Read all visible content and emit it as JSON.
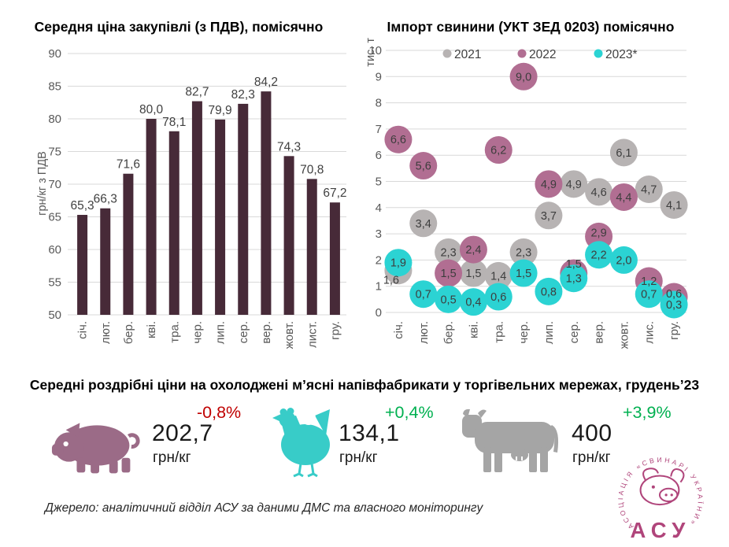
{
  "chart_data": [
    {
      "type": "bar",
      "title": "Середня ціна закупівлі (з ПДВ), помісячно",
      "ylabel": "грн/кг з ПДВ",
      "ylim": [
        50,
        90
      ],
      "ytick_step": 5,
      "grid": true,
      "categories": [
        "січ.",
        "лют.",
        "бер.",
        "кві.",
        "тра.",
        "чер.",
        "лип.",
        "сер.",
        "вер.",
        "жовт.",
        "лист.",
        "гру."
      ],
      "values": [
        65.3,
        66.3,
        71.6,
        80.0,
        78.1,
        82.7,
        79.9,
        82.3,
        84.2,
        74.3,
        70.8,
        67.2
      ],
      "value_labels": [
        "65,3",
        "66,3",
        "71,6",
        "80,0",
        "78,1",
        "82,7",
        "79,9",
        "82,3",
        "84,2",
        "74,3",
        "70,8",
        "67,2"
      ],
      "bar_color": "#472a38"
    },
    {
      "type": "scatter",
      "title": "Імпорт свинини (УКТ ЗЕД 0203) помісячно",
      "ylabel": "тис. т",
      "ylim": [
        0,
        10
      ],
      "ytick_step": 1,
      "grid": true,
      "legend_position": "top",
      "categories": [
        "січ.",
        "лют.",
        "бер.",
        "кві.",
        "тра.",
        "чер.",
        "лип.",
        "сер.",
        "вер.",
        "жовт.",
        "лис.",
        "гру."
      ],
      "series": [
        {
          "name": "2021",
          "color": "#b7b3b3",
          "values": [
            1.6,
            3.4,
            2.3,
            1.5,
            1.4,
            2.3,
            3.7,
            4.9,
            4.6,
            6.1,
            4.7,
            4.1
          ]
        },
        {
          "name": "2022",
          "color": "#b16e92",
          "values": [
            6.6,
            5.6,
            1.5,
            2.4,
            6.2,
            9.0,
            4.9,
            1.5,
            2.9,
            4.4,
            1.2,
            0.6
          ]
        },
        {
          "name": "2023*",
          "color": "#2bd3d3",
          "values": [
            1.9,
            0.7,
            0.5,
            0.4,
            0.6,
            1.5,
            0.8,
            1.3,
            2.2,
            2.0,
            0.7,
            0.3
          ]
        }
      ],
      "label_offsets": {
        "2021": {
          "0": [
            -9,
            12
          ]
        },
        "2022": {
          "7": [
            0,
            -12
          ],
          "8": [
            0,
            -5
          ],
          "11": [
            0,
            -4
          ]
        }
      }
    }
  ],
  "retail": {
    "title": "Середні роздрібні ціни на охолоджені м’ясні напівфабрикати у торгівельних мережах, грудень’23",
    "items": [
      {
        "animal": "pig",
        "price": "202,7",
        "unit": "грн/кг",
        "change": "-0,8%",
        "change_color": "#c00000",
        "icon_color": "#9b6b87"
      },
      {
        "animal": "chicken",
        "price": "134,1",
        "unit": "грн/кг",
        "change": "+0,4%",
        "change_color": "#00b050",
        "icon_color": "#38ccc8"
      },
      {
        "animal": "cow",
        "price": "400",
        "unit": "грн/кг",
        "change": "+3,9%",
        "change_color": "#00b050",
        "icon_color": "#a5a5a5"
      }
    ]
  },
  "source": "Джерело: аналітичний відділ АСУ за даними ДМС та власного моніторингу",
  "logo": {
    "ring_text": "АСОЦІАЦІЯ «СВИНАРІ УКРАЇНИ»",
    "abbr": "АСУ",
    "color": "#b0457b"
  },
  "style_colors": {
    "grid": "#d9d9d9",
    "tick_text": "#595959",
    "data_label": "#404040",
    "bubble_label": "#3d3d3d"
  }
}
